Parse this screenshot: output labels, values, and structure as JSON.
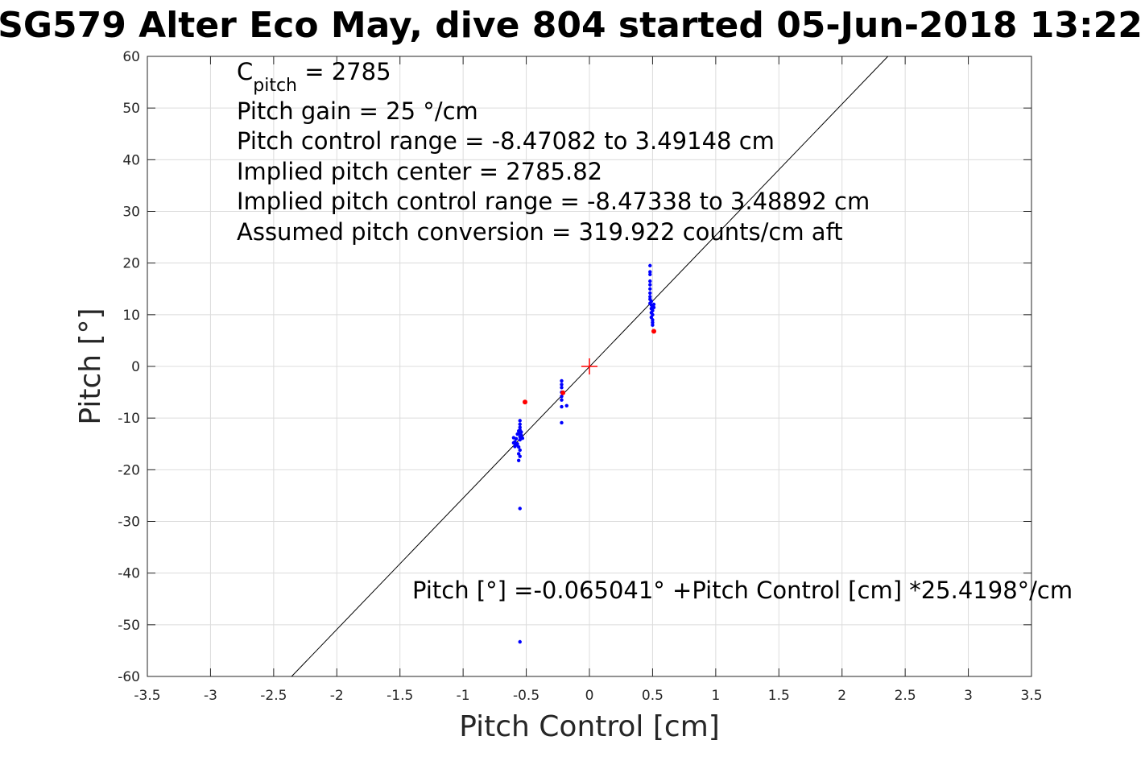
{
  "chart_data": {
    "type": "scatter",
    "title": "SG579 Alter Eco May, dive 804 started 05-Jun-2018 13:22",
    "xlabel": "Pitch Control [cm]",
    "ylabel": "Pitch [°]",
    "xlim": [
      -3.5,
      3.5
    ],
    "ylim": [
      -60,
      60
    ],
    "xticks": [
      "-3.5",
      "-3",
      "-2.5",
      "-2",
      "-1.5",
      "-1",
      "-0.5",
      "0",
      "0.5",
      "1",
      "1.5",
      "2",
      "2.5",
      "3",
      "3.5"
    ],
    "yticks": [
      "60",
      "50",
      "40",
      "30",
      "20",
      "10",
      "0",
      "-10",
      "-20",
      "-30",
      "-40",
      "-50",
      "-60"
    ],
    "grid": true,
    "annotations": {
      "c_pitch_main": "C",
      "c_pitch_sub": "pitch",
      "c_pitch_value": " = 2785",
      "pitch_gain": "Pitch gain = 25 °/cm",
      "control_range": "Pitch control range = -8.47082 to 3.49148 cm",
      "implied_center": "Implied pitch center = 2785.82",
      "implied_range": "Implied pitch control range = -8.47338 to 3.48892 cm",
      "conversion": "Assumed pitch conversion = 319.922 counts/cm aft",
      "fit_equation": "Pitch [°] =-0.065041° +Pitch Control [cm] *25.4198°/cm"
    },
    "fit_line": {
      "intercept": -0.065041,
      "slope": 25.4198
    },
    "center_marker": {
      "x": 0,
      "y": 0
    },
    "series": [
      {
        "color": "#0000ff",
        "points": [
          [
            -0.55,
            -10.5
          ],
          [
            -0.55,
            -11.2
          ],
          [
            -0.55,
            -11.8
          ],
          [
            -0.55,
            -12.3
          ],
          [
            -0.54,
            -12.7
          ],
          [
            -0.55,
            -13.0
          ],
          [
            -0.54,
            -13.3
          ],
          [
            -0.55,
            -13.6
          ],
          [
            -0.53,
            -13.9
          ],
          [
            -0.55,
            -14.2
          ],
          [
            -0.56,
            -12.5
          ],
          [
            -0.57,
            -13.1
          ],
          [
            -0.58,
            -14.0
          ],
          [
            -0.59,
            -14.6
          ],
          [
            -0.58,
            -15.2
          ],
          [
            -0.56,
            -15.6
          ],
          [
            -0.55,
            -16.2
          ],
          [
            -0.56,
            -16.9
          ],
          [
            -0.55,
            -17.4
          ],
          [
            -0.56,
            -18.2
          ],
          [
            -0.6,
            -13.8
          ],
          [
            -0.6,
            -14.8
          ],
          [
            -0.59,
            -15.5
          ],
          [
            -0.57,
            -15.0
          ],
          [
            -0.55,
            -27.5
          ],
          [
            -0.55,
            -53.3
          ],
          [
            -0.22,
            -2.8
          ],
          [
            -0.22,
            -3.5
          ],
          [
            -0.22,
            -4.1
          ],
          [
            -0.22,
            -5.0
          ],
          [
            -0.22,
            -5.8
          ],
          [
            -0.22,
            -6.5
          ],
          [
            -0.22,
            -7.8
          ],
          [
            -0.18,
            -7.6
          ],
          [
            -0.22,
            -10.9
          ],
          [
            0.48,
            19.5
          ],
          [
            0.48,
            18.3
          ],
          [
            0.48,
            17.8
          ],
          [
            0.48,
            16.5
          ],
          [
            0.48,
            15.8
          ],
          [
            0.48,
            15.0
          ],
          [
            0.48,
            14.2
          ],
          [
            0.48,
            13.5
          ],
          [
            0.48,
            13.0
          ],
          [
            0.49,
            12.6
          ],
          [
            0.48,
            12.2
          ],
          [
            0.49,
            11.9
          ],
          [
            0.5,
            11.6
          ],
          [
            0.49,
            11.2
          ],
          [
            0.5,
            10.8
          ],
          [
            0.49,
            10.4
          ],
          [
            0.5,
            10.0
          ],
          [
            0.49,
            9.5
          ],
          [
            0.5,
            9.0
          ],
          [
            0.5,
            8.5
          ],
          [
            0.5,
            8.0
          ],
          [
            0.51,
            11.4
          ],
          [
            0.51,
            12.0
          ]
        ]
      },
      {
        "color": "#ff0000",
        "points": [
          [
            -0.51,
            -6.9
          ],
          [
            -0.21,
            -5.1
          ],
          [
            0.51,
            6.8
          ]
        ]
      }
    ]
  }
}
